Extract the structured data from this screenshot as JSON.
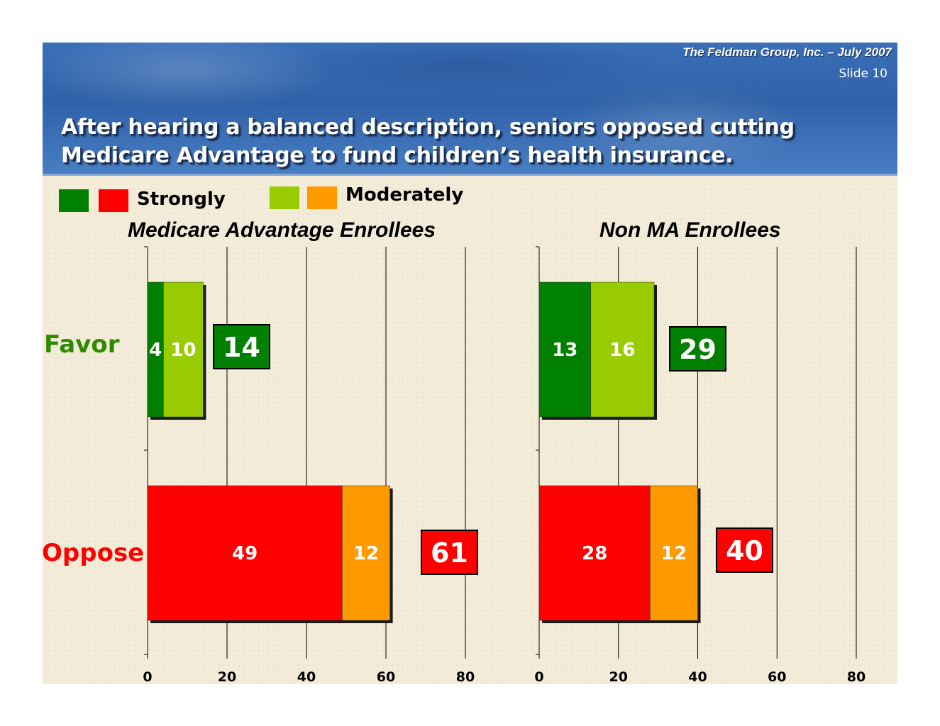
{
  "header": {
    "byline": "The Feldman Group, Inc. – July 2007",
    "slide_number": "Slide 10",
    "title_line1": "After hearing a balanced description, seniors opposed cutting",
    "title_line2": "Medicare Advantage to fund children’s health insurance."
  },
  "legend": {
    "strongly_label": "Strongly",
    "moderately_label": "Moderately"
  },
  "colors": {
    "favor_strong": "#008000",
    "favor_moderate": "#99cc00",
    "oppose_strong": "#ff0000",
    "oppose_moderate": "#ff9900"
  },
  "rows": {
    "favor": "Favor",
    "oppose": "Oppose",
    "favor_color": "#2e8b00",
    "oppose_color": "#ff0000"
  },
  "chart_data": [
    {
      "type": "bar",
      "orientation": "horizontal",
      "stacked": true,
      "title": "Medicare Advantage Enrollees",
      "categories": [
        "Favor",
        "Oppose"
      ],
      "series": [
        {
          "name": "Strongly",
          "values": [
            4,
            49
          ]
        },
        {
          "name": "Moderately",
          "values": [
            10,
            12
          ]
        }
      ],
      "totals": [
        14,
        61
      ],
      "xlim": [
        0,
        80
      ],
      "xticks": [
        0,
        20,
        40,
        60,
        80
      ],
      "grid": true
    },
    {
      "type": "bar",
      "orientation": "horizontal",
      "stacked": true,
      "title": "Non MA Enrollees",
      "categories": [
        "Favor",
        "Oppose"
      ],
      "series": [
        {
          "name": "Strongly",
          "values": [
            13,
            28
          ]
        },
        {
          "name": "Moderately",
          "values": [
            16,
            12
          ]
        }
      ],
      "totals": [
        29,
        40
      ],
      "xlim": [
        0,
        80
      ],
      "xticks": [
        0,
        20,
        40,
        60,
        80
      ],
      "grid": true
    }
  ]
}
